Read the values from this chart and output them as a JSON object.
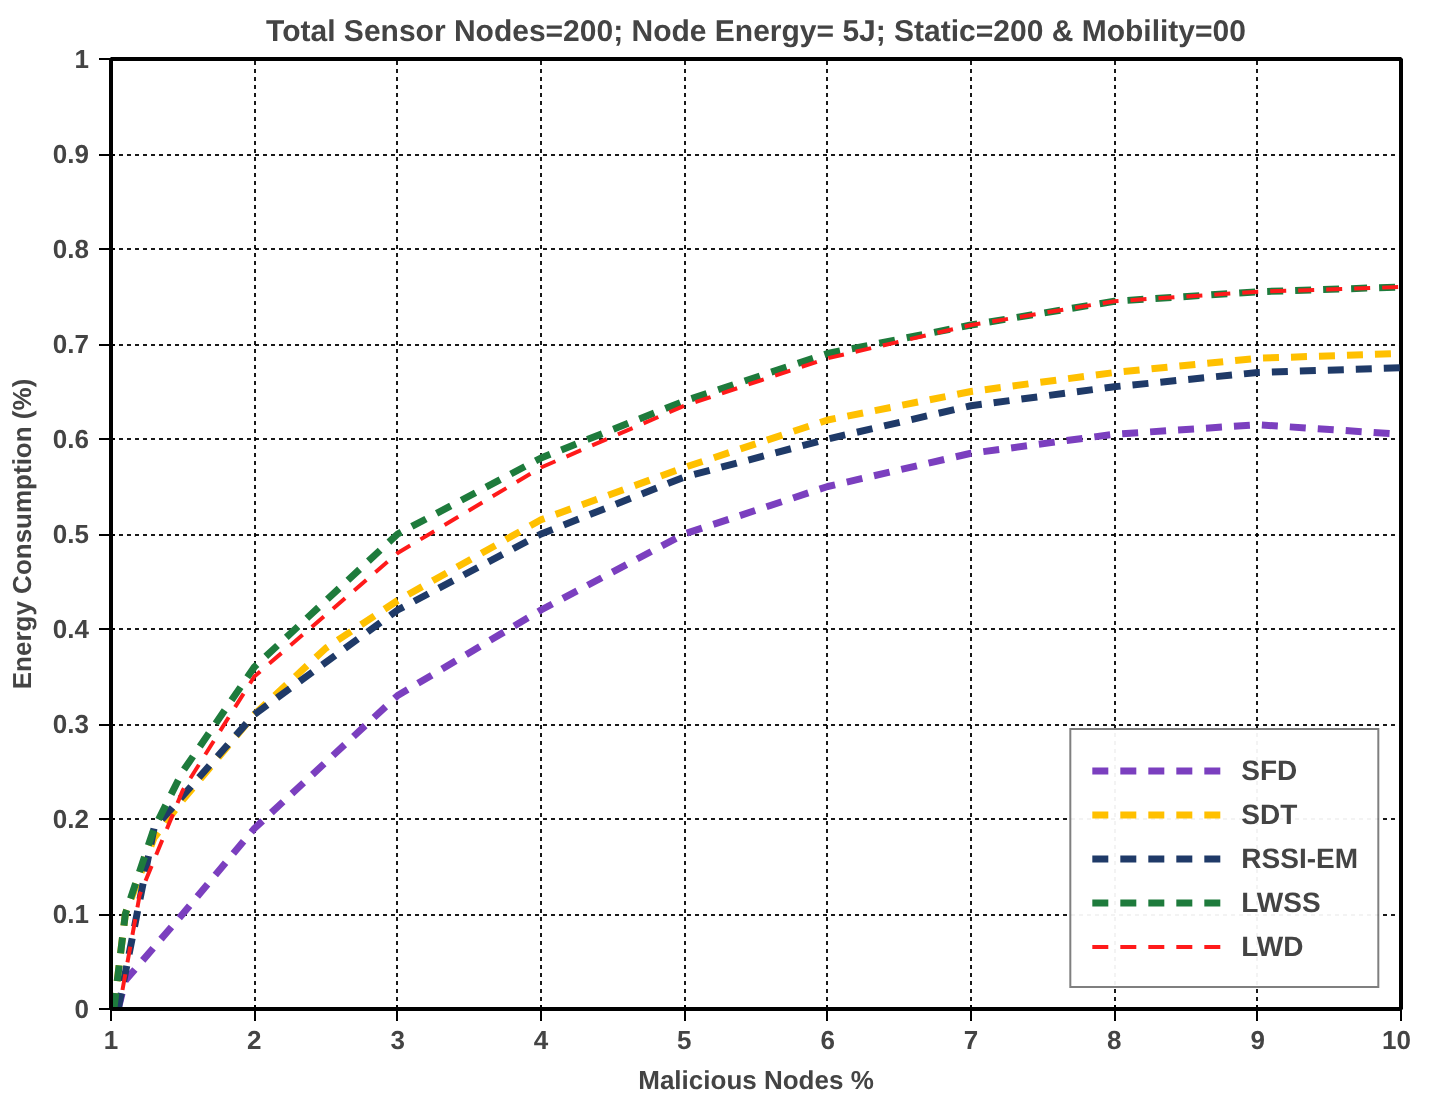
{
  "chart_data": {
    "type": "line",
    "title": "Total Sensor Nodes=200; Node Energy= 5J; Static=200 & Mobility=00",
    "xlabel": "Malicious Nodes %",
    "ylabel": "Energy Consumption (%)",
    "xlim": [
      1,
      10
    ],
    "ylim": [
      0,
      1.0
    ],
    "xticks": [
      1,
      2,
      3,
      4,
      5,
      6,
      7,
      8,
      9,
      10
    ],
    "yticks": [
      0,
      0.1,
      0.2,
      0.3,
      0.4,
      0.5,
      0.6,
      0.7,
      0.8,
      0.9,
      1.0
    ],
    "grid": true,
    "legend": "bottom right",
    "line_style": "dashed",
    "marker": "none",
    "series": [
      {
        "name": "SFD",
        "color": "#7b3fbf",
        "x": [
          1.05,
          1.1,
          1.5,
          2,
          3,
          4,
          5,
          6,
          7,
          8,
          9,
          10
        ],
        "values": [
          0,
          0.03,
          0.1,
          0.19,
          0.33,
          0.42,
          0.5,
          0.55,
          0.585,
          0.605,
          0.615,
          0.605
        ]
      },
      {
        "name": "SDT",
        "color": "#ffc000",
        "x": [
          1.02,
          1.1,
          1.3,
          1.5,
          2,
          2.5,
          3,
          4,
          5,
          6,
          7,
          8,
          9,
          10
        ],
        "values": [
          0,
          0.1,
          0.18,
          0.22,
          0.31,
          0.38,
          0.43,
          0.515,
          0.57,
          0.62,
          0.65,
          0.67,
          0.685,
          0.69
        ]
      },
      {
        "name": "RSSI-EM",
        "color": "#1f3a68",
        "x": [
          1.05,
          1.3,
          2,
          3,
          4,
          5,
          6,
          7,
          8,
          9,
          10
        ],
        "values": [
          0,
          0.19,
          0.31,
          0.42,
          0.5,
          0.56,
          0.6,
          0.635,
          0.655,
          0.67,
          0.675
        ]
      },
      {
        "name": "LWSS",
        "color": "#1e7b3c",
        "x": [
          1.02,
          1.1,
          1.3,
          1.5,
          2,
          3,
          4,
          5,
          6,
          7,
          8,
          9,
          10
        ],
        "values": [
          0,
          0.1,
          0.19,
          0.25,
          0.36,
          0.5,
          0.58,
          0.64,
          0.69,
          0.72,
          0.745,
          0.755,
          0.76
        ]
      },
      {
        "name": "LWD",
        "color": "#ff1a1a",
        "x": [
          1.08,
          1.2,
          1.5,
          2,
          3,
          4,
          5,
          6,
          7,
          8,
          9,
          10
        ],
        "values": [
          0.02,
          0.12,
          0.23,
          0.35,
          0.48,
          0.57,
          0.635,
          0.685,
          0.72,
          0.745,
          0.755,
          0.76
        ]
      }
    ]
  }
}
